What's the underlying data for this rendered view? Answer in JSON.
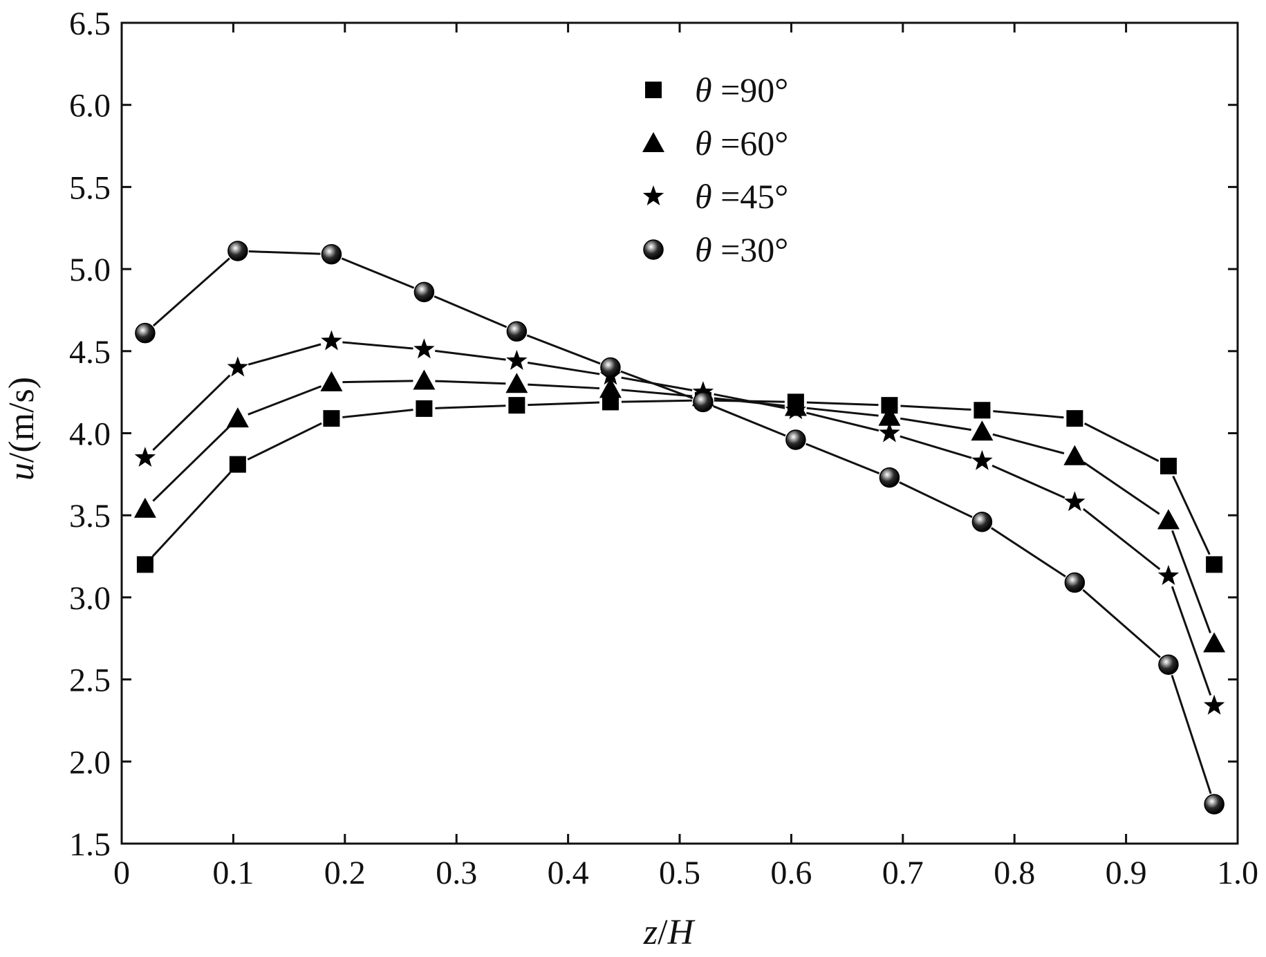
{
  "chart_data": {
    "type": "line",
    "title": "",
    "xlabel": {
      "var": "z",
      "sep": "/",
      "denom": "H"
    },
    "ylabel": {
      "var": "u",
      "unit": "/(m/s)"
    },
    "xlim": [
      0,
      1.0
    ],
    "ylim": [
      1.5,
      6.5
    ],
    "xticks": [
      {
        "value": 0,
        "label": "0"
      },
      {
        "value": 0.1,
        "label": "0.1"
      },
      {
        "value": 0.2,
        "label": "0.2"
      },
      {
        "value": 0.3,
        "label": "0.3"
      },
      {
        "value": 0.4,
        "label": "0.4"
      },
      {
        "value": 0.5,
        "label": "0.5"
      },
      {
        "value": 0.6,
        "label": "0.6"
      },
      {
        "value": 0.7,
        "label": "0.7"
      },
      {
        "value": 0.8,
        "label": "0.8"
      },
      {
        "value": 0.9,
        "label": "0.9"
      },
      {
        "value": 1.0,
        "label": "1.0"
      }
    ],
    "yticks": [
      {
        "value": 1.5,
        "label": "1.5"
      },
      {
        "value": 2.0,
        "label": "2.0"
      },
      {
        "value": 2.5,
        "label": "2.5"
      },
      {
        "value": 3.0,
        "label": "3.0"
      },
      {
        "value": 3.5,
        "label": "3.5"
      },
      {
        "value": 4.0,
        "label": "4.0"
      },
      {
        "value": 4.5,
        "label": "4.5"
      },
      {
        "value": 5.0,
        "label": "5.0"
      },
      {
        "value": 5.5,
        "label": "5.5"
      },
      {
        "value": 6.0,
        "label": "6.0"
      },
      {
        "value": 6.5,
        "label": "6.5"
      }
    ],
    "legend_position": "top-center",
    "x": [
      0.021,
      0.104,
      0.188,
      0.271,
      0.354,
      0.438,
      0.521,
      0.604,
      0.688,
      0.771,
      0.854,
      0.938,
      0.979
    ],
    "series": [
      {
        "name": "θ =90°",
        "marker": "square",
        "values": [
          3.2,
          3.81,
          4.09,
          4.15,
          4.17,
          4.19,
          4.2,
          4.19,
          4.17,
          4.14,
          4.09,
          3.8,
          3.2
        ]
      },
      {
        "name": "θ =60°",
        "marker": "triangle",
        "values": [
          3.54,
          4.09,
          4.31,
          4.32,
          4.3,
          4.27,
          4.22,
          4.16,
          4.1,
          4.01,
          3.86,
          3.47,
          2.72
        ]
      },
      {
        "name": "θ =45°",
        "marker": "star",
        "values": [
          3.85,
          4.4,
          4.56,
          4.51,
          4.44,
          4.35,
          4.25,
          4.14,
          4.0,
          3.83,
          3.58,
          3.13,
          2.34
        ]
      },
      {
        "name": "θ =30°",
        "marker": "sphere",
        "values": [
          4.61,
          5.11,
          5.09,
          4.86,
          4.62,
          4.4,
          4.19,
          3.96,
          3.73,
          3.46,
          3.09,
          2.59,
          1.74
        ]
      }
    ],
    "legend": [
      {
        "theta": "θ",
        "value": " =90°",
        "marker": "square"
      },
      {
        "theta": "θ",
        "value": " =60°",
        "marker": "triangle"
      },
      {
        "theta": "θ",
        "value": " =45°",
        "marker": "star"
      },
      {
        "theta": "θ",
        "value": " =30°",
        "marker": "sphere"
      }
    ]
  }
}
